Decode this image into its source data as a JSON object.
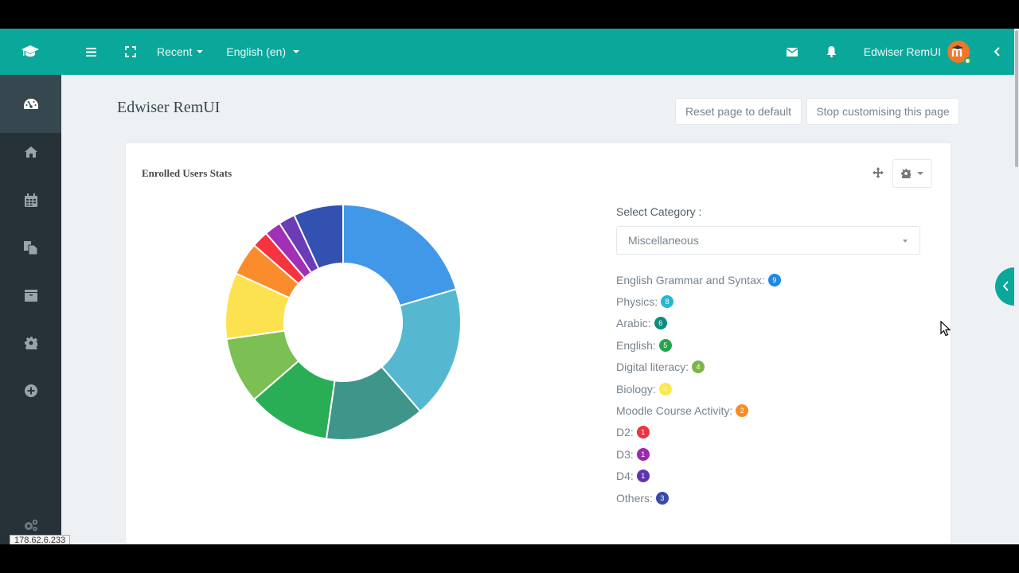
{
  "topbar": {
    "recent_label": "Recent",
    "language_label": "English (en)",
    "user_name": "Edwiser RemUI",
    "bg_color": "#0aa89b"
  },
  "sidebar": {
    "items": [
      {
        "name": "dashboard",
        "icon": "dashboard-icon",
        "active": true
      },
      {
        "name": "home",
        "icon": "home-icon"
      },
      {
        "name": "calendar",
        "icon": "calendar-icon"
      },
      {
        "name": "private-files",
        "icon": "files-icon"
      },
      {
        "name": "content-bank",
        "icon": "archive-icon"
      },
      {
        "name": "site-admin",
        "icon": "gear-icon"
      },
      {
        "name": "add-course",
        "icon": "plus-circle-icon"
      }
    ],
    "bottom_icon": "cogs-icon"
  },
  "page": {
    "title": "Edwiser RemUI",
    "reset_button": "Reset page to default",
    "stop_button": "Stop customising this page"
  },
  "card": {
    "title": "Enrolled Users Stats",
    "select_label": "Select Category :",
    "select_value": "Miscellaneous"
  },
  "chart_data": {
    "type": "pie",
    "donut": true,
    "title": "Enrolled Users Stats",
    "categories": [
      "English Grammar and Syntax",
      "Physics",
      "Arabic",
      "English",
      "Digital literacy",
      "Biology",
      "Moodle Course Activity",
      "D2",
      "D3",
      "D4",
      "Others"
    ],
    "values": [
      9,
      8,
      6,
      5,
      4,
      4,
      2,
      1,
      1,
      1,
      3
    ],
    "colors": [
      "#4298e8",
      "#56b8d0",
      "#40958a",
      "#2aae55",
      "#7cbf52",
      "#fde24f",
      "#fb8c2c",
      "#f6333e",
      "#a230b6",
      "#6a3cb5",
      "#3351b0"
    ],
    "legend_position": "right"
  },
  "legend": [
    {
      "label": "English Grammar and Syntax:",
      "count": "9",
      "color": "#1e88e5"
    },
    {
      "label": "Physics:",
      "count": "8",
      "color": "#26b6d4"
    },
    {
      "label": "Arabic:",
      "count": "6",
      "color": "#0b8d7c"
    },
    {
      "label": "English:",
      "count": "5",
      "color": "#25a34f"
    },
    {
      "label": "Digital literacy:",
      "count": "4",
      "color": "#7cb446"
    },
    {
      "label": "Biology:",
      "count": "4",
      "color": "#fde84f"
    },
    {
      "label": "Moodle Course Activity:",
      "count": "2",
      "color": "#f98b26"
    },
    {
      "label": "D2:",
      "count": "1",
      "color": "#ef3340"
    },
    {
      "label": "D3:",
      "count": "1",
      "color": "#9c27b0"
    },
    {
      "label": "D4:",
      "count": "1",
      "color": "#5e35b1"
    },
    {
      "label": "Others:",
      "count": "3",
      "color": "#3949ab"
    }
  ],
  "status": {
    "ip_tooltip": "178.62.6.233"
  }
}
